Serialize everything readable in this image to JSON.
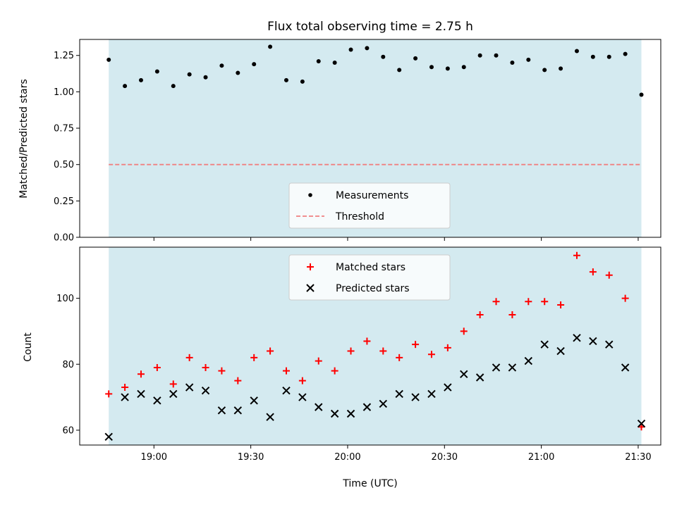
{
  "colors": {
    "shade": "#d4eaf0",
    "threshold": "#f08080",
    "measurement": "#000000",
    "matched": "#ff0000",
    "predicted": "#000000"
  },
  "chart_data": [
    {
      "type": "scatter",
      "title": "Flux total observing time = 2.75 h",
      "xlabel": "",
      "ylabel": "Matched/Predicted stars",
      "xlim": [
        "18:37",
        "21:37"
      ],
      "ylim": [
        0,
        1.36
      ],
      "yticks": [
        "0.00",
        "0.25",
        "0.50",
        "0.75",
        "1.00",
        "1.25"
      ],
      "shaded_range": [
        "18:46",
        "21:31"
      ],
      "legend_placement": "lower center",
      "series": [
        {
          "name": "Measurements",
          "marker": "dot",
          "x": [
            "18:46",
            "18:51",
            "18:56",
            "19:01",
            "19:06",
            "19:11",
            "19:16",
            "19:21",
            "19:26",
            "19:31",
            "19:36",
            "19:41",
            "19:46",
            "19:51",
            "19:56",
            "20:01",
            "20:06",
            "20:11",
            "20:16",
            "20:21",
            "20:26",
            "20:31",
            "20:36",
            "20:41",
            "20:46",
            "20:51",
            "20:56",
            "21:01",
            "21:06",
            "21:11",
            "21:16",
            "21:21",
            "21:26",
            "21:31"
          ],
          "values": [
            1.22,
            1.04,
            1.08,
            1.14,
            1.04,
            1.12,
            1.1,
            1.18,
            1.13,
            1.19,
            1.31,
            1.08,
            1.07,
            1.21,
            1.2,
            1.29,
            1.3,
            1.24,
            1.15,
            1.23,
            1.17,
            1.16,
            1.17,
            1.25,
            1.25,
            1.2,
            1.22,
            1.15,
            1.16,
            1.28,
            1.24,
            1.24,
            1.26,
            0.98
          ]
        },
        {
          "name": "Threshold",
          "marker": "dashed-line",
          "x": [
            "18:46",
            "21:31"
          ],
          "values": [
            0.5,
            0.5
          ]
        }
      ]
    },
    {
      "type": "scatter",
      "title": "",
      "xlabel": "Time (UTC)",
      "ylabel": "Count",
      "xlim": [
        "18:37",
        "21:37"
      ],
      "ylim": [
        55.5,
        115.5
      ],
      "xticks": [
        "19:00",
        "19:30",
        "20:00",
        "20:30",
        "21:00",
        "21:30"
      ],
      "yticks": [
        "60",
        "80",
        "100"
      ],
      "shaded_range": [
        "18:46",
        "21:31"
      ],
      "legend_placement": "upper center",
      "series": [
        {
          "name": "Matched stars",
          "marker": "plus",
          "x": [
            "18:46",
            "18:51",
            "18:56",
            "19:01",
            "19:06",
            "19:11",
            "19:16",
            "19:21",
            "19:26",
            "19:31",
            "19:36",
            "19:41",
            "19:46",
            "19:51",
            "19:56",
            "20:01",
            "20:06",
            "20:11",
            "20:16",
            "20:21",
            "20:26",
            "20:31",
            "20:36",
            "20:41",
            "20:46",
            "20:51",
            "20:56",
            "21:01",
            "21:06",
            "21:11",
            "21:16",
            "21:21",
            "21:26",
            "21:31"
          ],
          "values": [
            71,
            73,
            77,
            79,
            74,
            82,
            79,
            78,
            75,
            82,
            84,
            78,
            75,
            81,
            78,
            84,
            87,
            84,
            82,
            86,
            83,
            85,
            90,
            95,
            99,
            95,
            99,
            99,
            98,
            113,
            108,
            107,
            100,
            61
          ]
        },
        {
          "name": "Predicted stars",
          "marker": "x",
          "x": [
            "18:46",
            "18:51",
            "18:56",
            "19:01",
            "19:06",
            "19:11",
            "19:16",
            "19:21",
            "19:26",
            "19:31",
            "19:36",
            "19:41",
            "19:46",
            "19:51",
            "19:56",
            "20:01",
            "20:06",
            "20:11",
            "20:16",
            "20:21",
            "20:26",
            "20:31",
            "20:36",
            "20:41",
            "20:46",
            "20:51",
            "20:56",
            "21:01",
            "21:06",
            "21:11",
            "21:16",
            "21:21",
            "21:26",
            "21:31"
          ],
          "values": [
            58,
            70,
            71,
            69,
            71,
            73,
            72,
            66,
            66,
            69,
            64,
            72,
            70,
            67,
            65,
            65,
            67,
            68,
            71,
            70,
            71,
            73,
            77,
            76,
            79,
            79,
            81,
            86,
            84,
            88,
            87,
            86,
            79,
            62
          ]
        }
      ]
    }
  ]
}
